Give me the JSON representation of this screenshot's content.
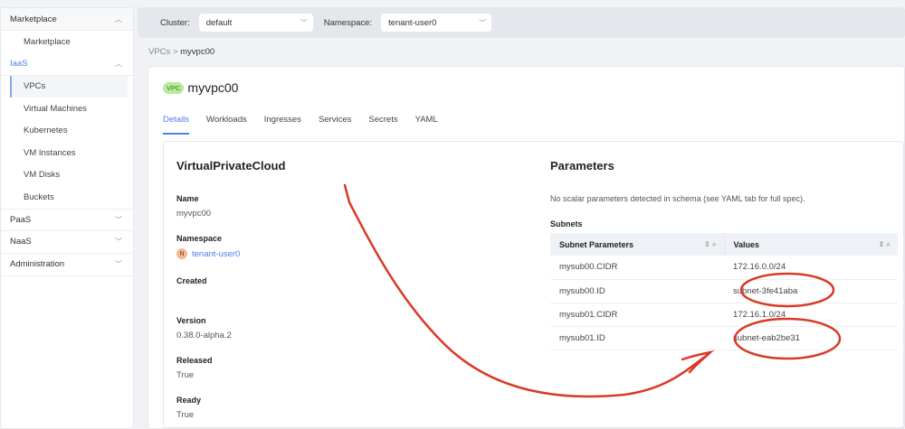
{
  "sidebar": {
    "groups": [
      {
        "label": "Marketplace",
        "items": [
          "Marketplace"
        ]
      },
      {
        "label": "IaaS",
        "items": [
          "VPCs",
          "Virtual Machines",
          "Kubernetes",
          "VM Instances",
          "VM Disks",
          "Buckets"
        ]
      },
      {
        "label": "PaaS"
      },
      {
        "label": "NaaS"
      },
      {
        "label": "Administration"
      }
    ]
  },
  "topbar": {
    "cluster_label": "Cluster:",
    "cluster_value": "default",
    "namespace_label": "Namespace:",
    "namespace_value": "tenant-user0"
  },
  "breadcrumb": {
    "parent": "VPCs",
    "sep": ">",
    "current": "myvpc00"
  },
  "header": {
    "badge": "VPC",
    "title": "myvpc00"
  },
  "tabs": [
    "Details",
    "Workloads",
    "Ingresses",
    "Services",
    "Secrets",
    "YAML"
  ],
  "details": {
    "heading": "VirtualPrivateCloud",
    "name_label": "Name",
    "name": "myvpc00",
    "namespace_label": "Namespace",
    "namespace_icon": "N",
    "namespace": "tenant-user0",
    "created_label": "Created",
    "version_label": "Version",
    "version": "0.38.0-alpha.2",
    "released_label": "Released",
    "released": "True",
    "ready_label": "Ready",
    "ready": "True"
  },
  "parameters": {
    "heading": "Parameters",
    "note": "No scalar parameters detected in schema (see YAML tab for full spec).",
    "subnets_label": "Subnets",
    "columns": [
      "Subnet Parameters",
      "Values"
    ],
    "rows": [
      [
        "mysub00.CIDR",
        "172.16.0.0/24"
      ],
      [
        "mysub00.ID",
        "subnet-3fe41aba"
      ],
      [
        "mysub01.CIDR",
        "172.16.1.0/24"
      ],
      [
        "mysub01.ID",
        "subnet-eab2be31"
      ]
    ]
  },
  "annotation_color": "#d93a26"
}
